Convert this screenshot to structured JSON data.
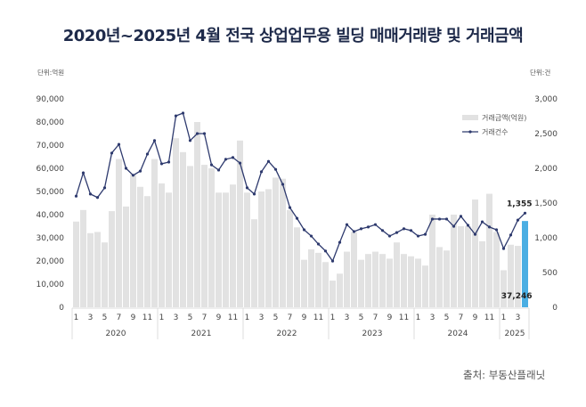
{
  "title": "2020년~2025년 4월 전국 상업업무용 빌딩 매매거래량 및 거래금액",
  "left_unit": "단위:억원",
  "right_unit": "단위:건",
  "source": "출처: 부동산플래닛",
  "legend": {
    "bar": "거래금액(억원)",
    "line": "거래건수"
  },
  "colors": {
    "bar": "#e2e2e2",
    "bar_highlight": "#4aaee3",
    "line": "#2e3a6e",
    "title": "#1e2a4a"
  },
  "annotations": {
    "last_count": "1,355",
    "last_amount": "37,246"
  },
  "chart_data": {
    "type": "bar+line",
    "title": "2020년~2025년 4월 전국 상업업무용 빌딩 매매거래량 및 거래금액",
    "xlabel": "",
    "ylabel_left": "단위:억원",
    "ylabel_right": "단위:건",
    "ylim_left": [
      0,
      90000
    ],
    "ylim_right": [
      0,
      3000
    ],
    "left_ticks": [
      "0",
      "10,000",
      "20,000",
      "30,000",
      "40,000",
      "50,000",
      "60,000",
      "70,000",
      "80,000",
      "90,000"
    ],
    "right_ticks": [
      "0",
      "500",
      "1,000",
      "1,500",
      "2,000",
      "2,500",
      "3,000"
    ],
    "years": [
      {
        "label": "2020",
        "months": 12
      },
      {
        "label": "2021",
        "months": 12
      },
      {
        "label": "2022",
        "months": 12
      },
      {
        "label": "2023",
        "months": 12
      },
      {
        "label": "2024",
        "months": 12
      },
      {
        "label": "2025",
        "months": 4
      }
    ],
    "month_tick_labels": [
      "1",
      "3",
      "5",
      "7",
      "9",
      "11"
    ],
    "legend_position": "upper right",
    "series": [
      {
        "name": "거래금액(억원)",
        "type": "bar",
        "axis": "left",
        "values": [
          37000,
          42000,
          32000,
          32500,
          28000,
          41500,
          64000,
          43500,
          57500,
          52000,
          48000,
          64000,
          53500,
          49500,
          73000,
          67000,
          61000,
          80000,
          61500,
          60000,
          49500,
          49500,
          53000,
          72000,
          49500,
          38000,
          50000,
          51000,
          56000,
          55500,
          42000,
          34500,
          20500,
          25000,
          23500,
          19500,
          11500,
          14500,
          24000,
          32500,
          20500,
          23000,
          24000,
          23000,
          21000,
          28000,
          23000,
          22000,
          21000,
          18000,
          40000,
          26000,
          24500,
          40000,
          35000,
          35000,
          46500,
          28500,
          49000,
          32500,
          16000,
          27000,
          26500,
          37246
        ]
      },
      {
        "name": "거래건수",
        "type": "line",
        "axis": "right",
        "values": [
          1600,
          1935,
          1630,
          1580,
          1720,
          2220,
          2345,
          2000,
          1900,
          1960,
          2205,
          2400,
          2065,
          2090,
          2755,
          2795,
          2400,
          2500,
          2500,
          2050,
          1975,
          2130,
          2155,
          2075,
          1720,
          1630,
          1950,
          2100,
          1985,
          1770,
          1435,
          1280,
          1115,
          1025,
          910,
          810,
          665,
          935,
          1190,
          1090,
          1130,
          1155,
          1190,
          1105,
          1025,
          1075,
          1130,
          1105,
          1025,
          1050,
          1270,
          1270,
          1270,
          1165,
          1310,
          1180,
          1050,
          1230,
          1155,
          1115,
          845,
          1040,
          1255,
          1355
        ]
      }
    ]
  }
}
